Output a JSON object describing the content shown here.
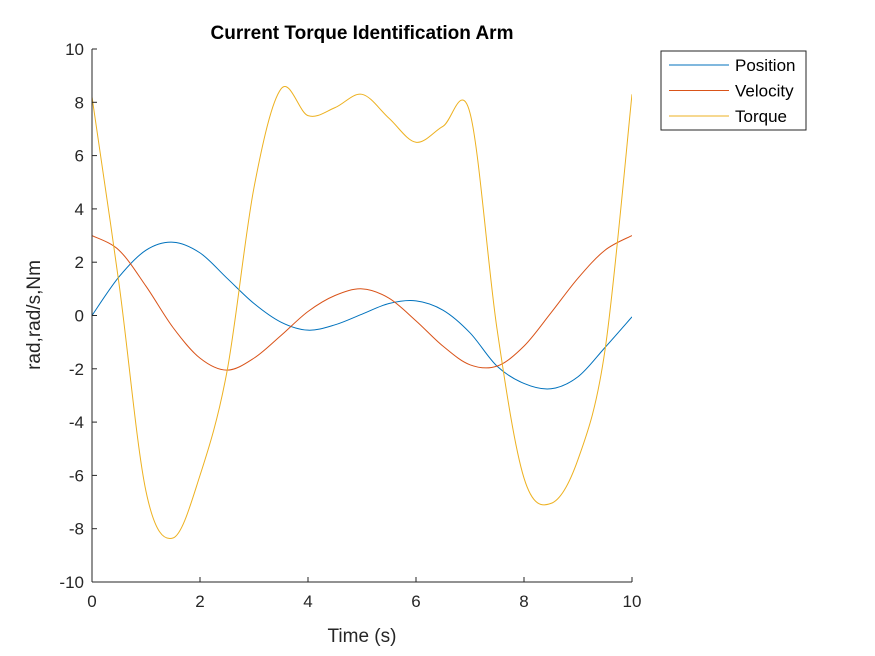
{
  "chart_data": {
    "type": "line",
    "title": "Current Torque Identification Arm",
    "xlabel": "Time (s)",
    "ylabel": "rad,rad/s,Nm",
    "xlim": [
      0,
      10
    ],
    "ylim": [
      -10,
      10
    ],
    "xticks": [
      0,
      2,
      4,
      6,
      8,
      10
    ],
    "xtick_labels": [
      "0",
      "2",
      "4",
      "6",
      "8",
      "10"
    ],
    "yticks": [
      -10,
      -8,
      -6,
      -4,
      -2,
      0,
      2,
      4,
      6,
      8,
      10
    ],
    "ytick_labels": [
      "-10",
      "-8",
      "-6",
      "-4",
      "-2",
      "0",
      "2",
      "4",
      "6",
      "8",
      "10"
    ],
    "grid": false,
    "legend_position": "outside top-right",
    "x": [
      0,
      0.5,
      1.0,
      1.5,
      2.0,
      2.5,
      3.0,
      3.5,
      4.0,
      4.5,
      5.0,
      5.5,
      6.0,
      6.5,
      7.0,
      7.5,
      8.0,
      8.5,
      9.0,
      9.5,
      10.0
    ],
    "series": [
      {
        "name": "Position",
        "color": "#0072BD",
        "values": [
          0,
          1.45,
          2.45,
          2.75,
          2.35,
          1.4,
          0.45,
          -0.25,
          -0.55,
          -0.35,
          0.05,
          0.45,
          0.55,
          0.2,
          -0.65,
          -1.9,
          -2.55,
          -2.75,
          -2.3,
          -1.2,
          -0.05
        ]
      },
      {
        "name": "Velocity",
        "color": "#D95319",
        "values": [
          3.0,
          2.45,
          1.1,
          -0.45,
          -1.6,
          -2.05,
          -1.6,
          -0.75,
          0.15,
          0.75,
          1.0,
          0.65,
          -0.2,
          -1.15,
          -1.85,
          -1.9,
          -1.15,
          0.1,
          1.4,
          2.45,
          3.0
        ]
      },
      {
        "name": "Torque",
        "color": "#EDB120",
        "values": [
          8.2,
          1.2,
          -6.6,
          -8.35,
          -6.0,
          -2.1,
          4.8,
          8.5,
          7.5,
          7.8,
          8.3,
          7.4,
          6.5,
          7.1,
          7.6,
          -0.5,
          -6.1,
          -7.05,
          -5.4,
          -1.3,
          8.3
        ]
      }
    ]
  }
}
